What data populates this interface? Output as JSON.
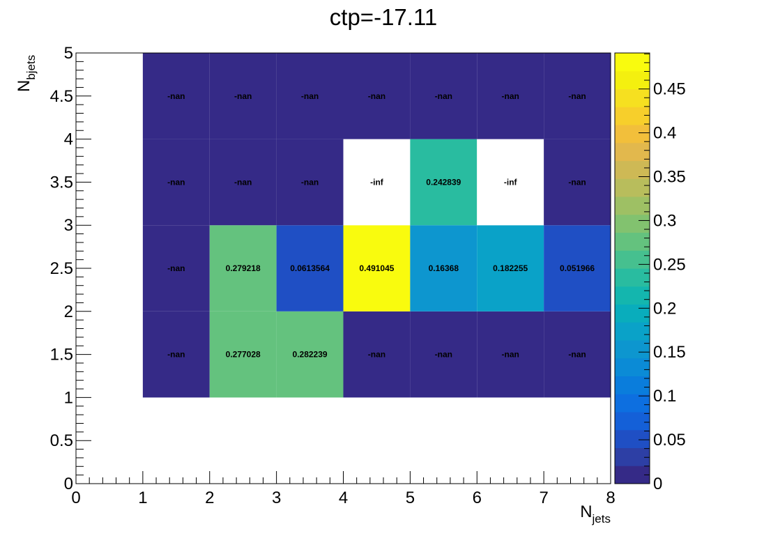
{
  "chart_data": {
    "type": "heatmap",
    "title": "ctp=-17.11",
    "xlabel": {
      "main": "N",
      "sub": "jets"
    },
    "ylabel": {
      "main": "N",
      "sub": "bjets"
    },
    "xlim": [
      0,
      8
    ],
    "ylim": [
      0,
      5
    ],
    "x_ticks": [
      "0",
      "1",
      "2",
      "3",
      "4",
      "5",
      "6",
      "7",
      "8"
    ],
    "y_ticks": [
      "0",
      "0.5",
      "1",
      "1.5",
      "2",
      "2.5",
      "3",
      "3.5",
      "4",
      "4.5",
      "5"
    ],
    "z_range": [
      0,
      0.491045
    ],
    "colorbar_ticks": [
      "0",
      "0.05",
      "0.1",
      "0.15",
      "0.2",
      "0.25",
      "0.3",
      "0.35",
      "0.4",
      "0.45"
    ],
    "cells": [
      {
        "x": [
          1,
          2
        ],
        "y": [
          1,
          2
        ],
        "value": null,
        "label": "-nan"
      },
      {
        "x": [
          2,
          3
        ],
        "y": [
          1,
          2
        ],
        "value": 0.277028,
        "label": "0.277028"
      },
      {
        "x": [
          3,
          4
        ],
        "y": [
          1,
          2
        ],
        "value": 0.282239,
        "label": "0.282239"
      },
      {
        "x": [
          4,
          5
        ],
        "y": [
          1,
          2
        ],
        "value": null,
        "label": "-nan"
      },
      {
        "x": [
          5,
          6
        ],
        "y": [
          1,
          2
        ],
        "value": null,
        "label": "-nan"
      },
      {
        "x": [
          6,
          7
        ],
        "y": [
          1,
          2
        ],
        "value": null,
        "label": "-nan"
      },
      {
        "x": [
          7,
          8
        ],
        "y": [
          1,
          2
        ],
        "value": null,
        "label": "-nan"
      },
      {
        "x": [
          1,
          2
        ],
        "y": [
          2,
          3
        ],
        "value": null,
        "label": "-nan"
      },
      {
        "x": [
          2,
          3
        ],
        "y": [
          2,
          3
        ],
        "value": 0.279218,
        "label": "0.279218"
      },
      {
        "x": [
          3,
          4
        ],
        "y": [
          2,
          3
        ],
        "value": 0.0613564,
        "label": "0.0613564"
      },
      {
        "x": [
          4,
          5
        ],
        "y": [
          2,
          3
        ],
        "value": 0.491045,
        "label": "0.491045"
      },
      {
        "x": [
          5,
          6
        ],
        "y": [
          2,
          3
        ],
        "value": 0.16368,
        "label": "0.16368"
      },
      {
        "x": [
          6,
          7
        ],
        "y": [
          2,
          3
        ],
        "value": 0.182255,
        "label": "0.182255"
      },
      {
        "x": [
          7,
          8
        ],
        "y": [
          2,
          3
        ],
        "value": 0.051966,
        "label": "0.051966"
      },
      {
        "x": [
          1,
          2
        ],
        "y": [
          3,
          4
        ],
        "value": null,
        "label": "-nan"
      },
      {
        "x": [
          2,
          3
        ],
        "y": [
          3,
          4
        ],
        "value": null,
        "label": "-nan"
      },
      {
        "x": [
          3,
          4
        ],
        "y": [
          3,
          4
        ],
        "value": null,
        "label": "-nan"
      },
      {
        "x": [
          4,
          5
        ],
        "y": [
          3,
          4
        ],
        "value": "empty",
        "label": "-inf"
      },
      {
        "x": [
          5,
          6
        ],
        "y": [
          3,
          4
        ],
        "value": 0.242839,
        "label": "0.242839"
      },
      {
        "x": [
          6,
          7
        ],
        "y": [
          3,
          4
        ],
        "value": "empty",
        "label": "-inf"
      },
      {
        "x": [
          7,
          8
        ],
        "y": [
          3,
          4
        ],
        "value": null,
        "label": "-nan"
      },
      {
        "x": [
          1,
          2
        ],
        "y": [
          4,
          5
        ],
        "value": null,
        "label": "-nan"
      },
      {
        "x": [
          2,
          3
        ],
        "y": [
          4,
          5
        ],
        "value": null,
        "label": "-nan"
      },
      {
        "x": [
          3,
          4
        ],
        "y": [
          4,
          5
        ],
        "value": null,
        "label": "-nan"
      },
      {
        "x": [
          4,
          5
        ],
        "y": [
          4,
          5
        ],
        "value": null,
        "label": "-nan"
      },
      {
        "x": [
          5,
          6
        ],
        "y": [
          4,
          5
        ],
        "value": null,
        "label": "-nan"
      },
      {
        "x": [
          6,
          7
        ],
        "y": [
          4,
          5
        ],
        "value": null,
        "label": "-nan"
      },
      {
        "x": [
          7,
          8
        ],
        "y": [
          4,
          5
        ],
        "value": null,
        "label": "-nan"
      }
    ],
    "palette": [
      "#352a87",
      "#2d3fa5",
      "#1f4fc4",
      "#1460d8",
      "#0d6fe0",
      "#0a7ddc",
      "#0b8bd6",
      "#0d96cf",
      "#0aa2c8",
      "#09adbc",
      "#14b6ae",
      "#29bca0",
      "#46c08f",
      "#64c27e",
      "#82c26f",
      "#9ec064",
      "#b8bd5c",
      "#ceb955",
      "#e2b84d",
      "#f2bf3b",
      "#f7cf2b",
      "#f6e020",
      "#f4f00f",
      "#f9fb0e"
    ],
    "nan_color": "#352a87",
    "grid": false
  }
}
